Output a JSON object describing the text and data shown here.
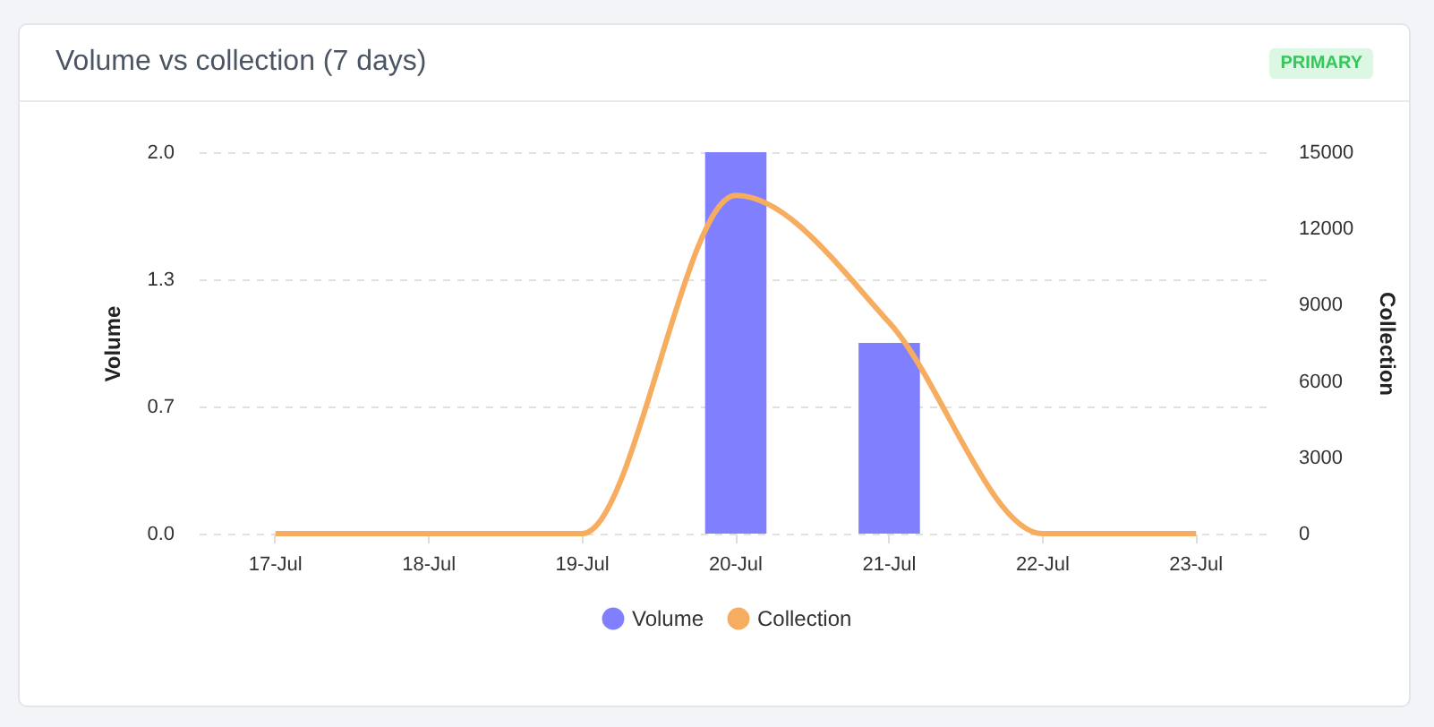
{
  "chart_data": {
    "type": "bar",
    "title": "Volume vs collection (7 days)",
    "annotations": [
      "PRIMARY"
    ],
    "ylabel": "Volume",
    "y2label": "Collection",
    "categories": [
      "17-Jul",
      "18-Jul",
      "19-Jul",
      "20-Jul",
      "21-Jul",
      "22-Jul",
      "23-Jul"
    ],
    "series": [
      {
        "name": "Volume",
        "color": "#8080ff",
        "values": [
          0,
          0,
          0,
          2,
          1,
          0,
          0
        ]
      },
      {
        "name": "Collection",
        "type": "line",
        "axis": "y2",
        "color": "#f6ad5f",
        "values": [
          0,
          0,
          0,
          13300,
          8300,
          0,
          0
        ]
      }
    ],
    "ylim": [
      0,
      2
    ],
    "yticks": [
      {
        "value": 0,
        "label": "0.0"
      },
      {
        "value": 0.667,
        "label": "0.7"
      },
      {
        "value": 1.333,
        "label": "1.3"
      },
      {
        "value": 2,
        "label": "2.0"
      }
    ],
    "y2lim": [
      0,
      15000
    ],
    "y2ticks": [
      0,
      {
        "value": 3000,
        "label": "3000"
      },
      {
        "value": 6000,
        "label": "6000"
      },
      {
        "value": 9000,
        "label": "9000"
      },
      {
        "value": 12000,
        "label": "12000"
      },
      {
        "value": 15000,
        "label": "15000"
      }
    ],
    "grid": "y",
    "legend": "bottom",
    "marker": "none"
  }
}
